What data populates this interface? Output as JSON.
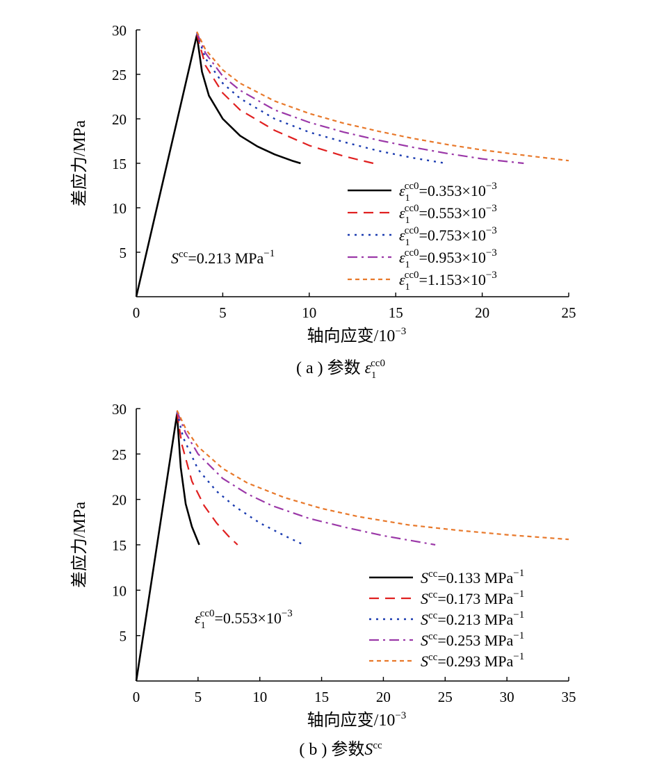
{
  "chart_data": [
    {
      "type": "line",
      "caption": "( a ) 参数 ε1cc0",
      "caption_prefix": "( a ) 参数 ",
      "caption_symbol": "ε",
      "caption_sub": "1",
      "caption_sup": "cc0",
      "xlabel": "轴向应变/10",
      "xlabel_exp": "−3",
      "ylabel": "差应力/MPa",
      "xlim": [
        0,
        25
      ],
      "ylim": [
        0,
        30
      ],
      "xticks": [
        0,
        5,
        10,
        15,
        20,
        25
      ],
      "yticks": [
        5,
        10,
        15,
        20,
        25,
        30
      ],
      "grid": false,
      "legend_position": "lower-right",
      "annotation": {
        "symbol": "S",
        "sup": "cc",
        "text": "=0.213 MPa",
        "exp": "−1"
      },
      "series": [
        {
          "name": "ε1cc0=0.353×10−3",
          "label_value": "=0.353×10",
          "color": "#000000",
          "dash": "",
          "width": 2.6,
          "x": [
            0,
            3.5,
            3.8,
            4.2,
            5,
            6,
            7,
            8,
            9,
            9.5
          ],
          "y": [
            0,
            29.4,
            25.3,
            22.6,
            20.0,
            18.1,
            16.9,
            16.0,
            15.3,
            15.0
          ]
        },
        {
          "name": "ε1cc0=0.553×10−3",
          "label_value": "=0.553×10",
          "color": "#e02020",
          "dash": "14,9",
          "width": 2.2,
          "x": [
            3.5,
            4,
            5,
            6,
            8,
            10,
            12,
            13.7
          ],
          "y": [
            29.5,
            26.0,
            22.9,
            21.0,
            18.7,
            17.0,
            15.8,
            15.0
          ]
        },
        {
          "name": "ε1cc0=0.753×10−3",
          "label_value": "=0.753×10",
          "color": "#1a3bb0",
          "dash": "3,7",
          "width": 2.4,
          "x": [
            3.5,
            4,
            5,
            6,
            8,
            10,
            12,
            14,
            16,
            17.9
          ],
          "y": [
            29.6,
            26.8,
            24.0,
            22.3,
            20.0,
            18.5,
            17.4,
            16.4,
            15.6,
            15.0
          ]
        },
        {
          "name": "ε1cc0=0.953×10−3",
          "label_value": "=0.953×10",
          "color": "#9b38a8",
          "dash": "14,6,3,6",
          "width": 2.2,
          "x": [
            3.5,
            4,
            5,
            6,
            8,
            10,
            12,
            14,
            16,
            18,
            20,
            22.4
          ],
          "y": [
            29.7,
            27.4,
            24.8,
            23.2,
            21.0,
            19.6,
            18.5,
            17.6,
            16.8,
            16.1,
            15.5,
            15.0
          ]
        },
        {
          "name": "ε1cc0=1.153×10−3",
          "label_value": "=1.153×10",
          "color": "#e8782a",
          "dash": "6,5",
          "width": 2.2,
          "x": [
            3.5,
            4,
            5,
            6,
            8,
            10,
            12,
            14,
            16,
            18,
            20,
            22,
            25
          ],
          "y": [
            29.8,
            27.8,
            25.5,
            24.0,
            22.0,
            20.6,
            19.5,
            18.6,
            17.8,
            17.1,
            16.5,
            16.0,
            15.3
          ]
        }
      ]
    },
    {
      "type": "line",
      "caption": "( b ) 参数Scc",
      "caption_prefix": "( b ) 参数",
      "caption_symbol": "S",
      "caption_sub": "",
      "caption_sup": "cc",
      "xlabel": "轴向应变/10",
      "xlabel_exp": "−3",
      "ylabel": "差应力/MPa",
      "xlim": [
        0,
        35
      ],
      "ylim": [
        0,
        30
      ],
      "xticks": [
        0,
        5,
        10,
        15,
        20,
        25,
        30,
        35
      ],
      "yticks": [
        5,
        10,
        15,
        20,
        25,
        30
      ],
      "grid": false,
      "legend_position": "lower-right",
      "annotation": {
        "symbol": "ε",
        "sub": "1",
        "sup": "cc0",
        "text": "=0.553×10",
        "exp": "−3"
      },
      "series": [
        {
          "name": "Scc=0.133 MPa−1",
          "label_value": "=0.133 MPa",
          "color": "#000000",
          "dash": "",
          "width": 2.6,
          "x": [
            0,
            3.3,
            3.6,
            4.0,
            4.5,
            5.1
          ],
          "y": [
            0,
            29.4,
            23.5,
            19.5,
            17.0,
            15.0
          ]
        },
        {
          "name": "Scc=0.173 MPa−1",
          "label_value": "=0.173 MPa",
          "color": "#e02020",
          "dash": "14,9",
          "width": 2.2,
          "x": [
            3.3,
            3.7,
            4.5,
            5.5,
            6.5,
            7.5,
            8.2
          ],
          "y": [
            29.5,
            26.0,
            22.0,
            19.3,
            17.4,
            15.9,
            15.0
          ]
        },
        {
          "name": "Scc=0.213 MPa−1",
          "label_value": "=0.213 MPa",
          "color": "#1a3bb0",
          "dash": "3,7",
          "width": 2.4,
          "x": [
            3.3,
            3.8,
            5,
            6.5,
            8,
            10,
            12,
            13.4
          ],
          "y": [
            29.6,
            26.8,
            23.3,
            20.9,
            19.2,
            17.4,
            16.0,
            15.1
          ]
        },
        {
          "name": "Scc=0.253 MPa−1",
          "label_value": "=0.253 MPa",
          "color": "#9b38a8",
          "dash": "14,6,3,6",
          "width": 2.2,
          "x": [
            3.3,
            4,
            5,
            7,
            9,
            11,
            14,
            17,
            20,
            24.2
          ],
          "y": [
            29.7,
            27.3,
            25.0,
            22.3,
            20.6,
            19.3,
            17.9,
            16.9,
            16.0,
            15.0
          ]
        },
        {
          "name": "Scc=0.293 MPa−1",
          "label_value": "=0.293 MPa",
          "color": "#e8782a",
          "dash": "6,5",
          "width": 2.2,
          "x": [
            3.3,
            4,
            5,
            7,
            9,
            12,
            15,
            18,
            22,
            26,
            30,
            35
          ],
          "y": [
            29.8,
            27.8,
            25.8,
            23.4,
            21.8,
            20.2,
            19.0,
            18.1,
            17.2,
            16.6,
            16.1,
            15.6
          ]
        }
      ]
    }
  ]
}
